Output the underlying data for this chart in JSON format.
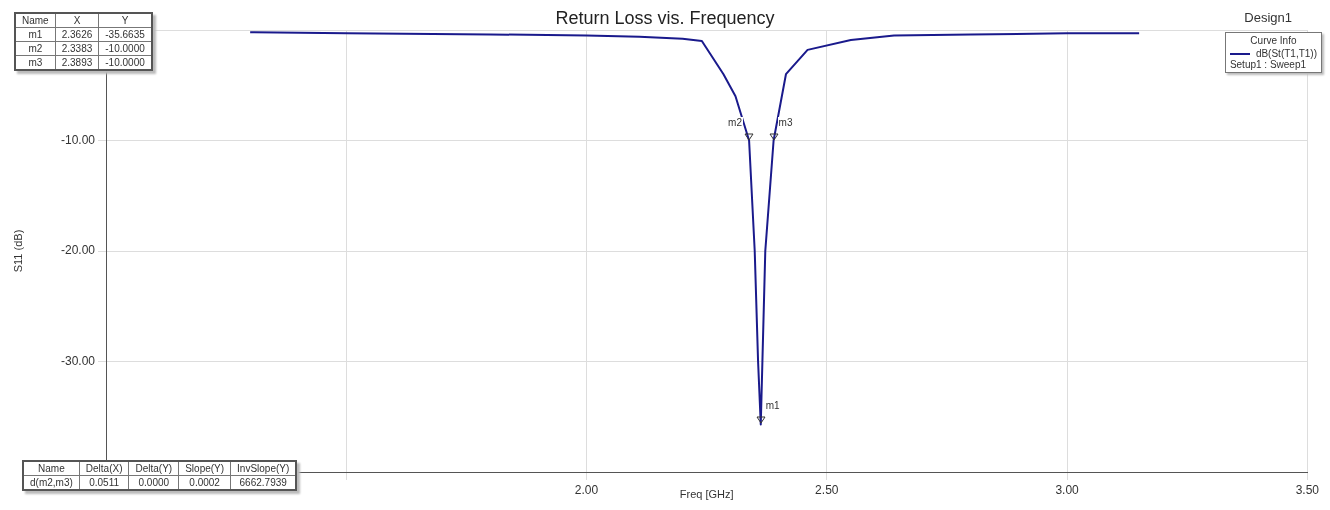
{
  "chart_data": {
    "type": "line",
    "title": "Return Loss vis. Frequency",
    "xlabel": "Freq [GHz]",
    "ylabel": "S11 (dB)",
    "legend_title": "Curve Info",
    "x": [
      1.3,
      1.5,
      1.8,
      2.0,
      2.11,
      2.2,
      2.24,
      2.285,
      2.31,
      2.3383,
      2.35,
      2.357,
      2.3626,
      2.366,
      2.372,
      2.3893,
      2.415,
      2.46,
      2.55,
      2.64,
      2.8,
      3.0,
      3.15
    ],
    "series": [
      {
        "name": "dB(St(T1,T1))",
        "color": "#1a1a8c",
        "values": [
          -0.2,
          -0.3,
          -0.4,
          -0.5,
          -0.6,
          -0.8,
          -1.0,
          -4.0,
          -6.0,
          -10.0,
          -20.0,
          -30.0,
          -35.7,
          -30.0,
          -20.0,
          -10.0,
          -4.0,
          -1.8,
          -0.9,
          -0.5,
          -0.4,
          -0.3,
          -0.3
        ]
      }
    ],
    "xlim": [
      1.0,
      3.5
    ],
    "xticks": [
      {
        "value": 1.0,
        "label": null
      },
      {
        "value": 1.5,
        "label": null
      },
      {
        "value": 2.0,
        "label": "2.00"
      },
      {
        "value": 2.5,
        "label": "2.50"
      },
      {
        "value": 3.0,
        "label": "3.00"
      },
      {
        "value": 3.5,
        "label": "3.50"
      }
    ],
    "ylim": [
      -40,
      0
    ],
    "yticks": [
      {
        "value": 0,
        "label": null
      },
      {
        "value": -10,
        "label": "-10.00"
      },
      {
        "value": -20,
        "label": "-20.00"
      },
      {
        "value": -30,
        "label": "-30.00"
      },
      {
        "value": -40,
        "label": null
      }
    ],
    "grid": true,
    "legend": "top right",
    "marker": "none",
    "line_style": "solid",
    "annotations": [
      {
        "text": "m1",
        "x": 2.3626,
        "y": -35.7
      },
      {
        "text": "m2",
        "x": 2.3383,
        "y": -10.0
      },
      {
        "text": "m3",
        "x": 2.3893,
        "y": -10.0
      },
      "Name",
      "X",
      "Y",
      "m1",
      "2.3626",
      "-35.6635",
      "m2",
      "2.3383",
      "-10.0000",
      "m3",
      "2.3893",
      "-10.0000",
      "Name",
      "Delta(X)",
      "Delta(Y)",
      "Slope(Y)",
      "InvSlope(Y)",
      "d(m2,m3)",
      "0.0511",
      "0.0000",
      "0.0002",
      "6662.7939",
      "Design1",
      "Setup1 : Sweep1"
    ]
  }
}
